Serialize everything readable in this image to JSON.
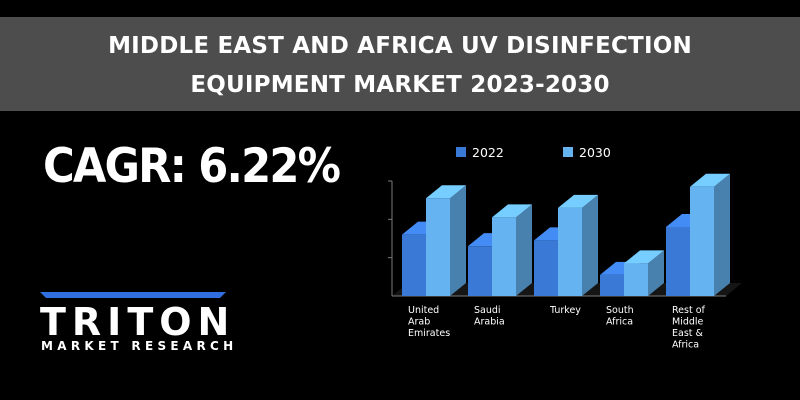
{
  "header": {
    "title_line1": "MIDDLE EAST AND AFRICA UV DISINFECTION",
    "title_line2": "EQUIPMENT MARKET 2023-2030"
  },
  "cagr": "CAGR: 6.22%",
  "logo": {
    "word": "TRITON",
    "subtitle": "MARKET RESEARCH",
    "accent_color": "#2f6fe0"
  },
  "chart_data": {
    "type": "bar",
    "categories": [
      [
        "United",
        "Arab",
        "Emirates"
      ],
      [
        "Saudi",
        "Arabia"
      ],
      [
        "Turkey"
      ],
      [
        "South",
        "Africa"
      ],
      [
        "Rest of",
        "Middle",
        "East &",
        "Africa"
      ]
    ],
    "series": [
      {
        "name": "2022",
        "color": "#3a7ad6",
        "values": [
          1.6,
          1.3,
          1.45,
          0.55,
          1.8
        ]
      },
      {
        "name": "2030",
        "color": "#66b3f2",
        "values": [
          2.55,
          2.05,
          2.3,
          0.85,
          2.85
        ]
      }
    ],
    "ylim": [
      0,
      3
    ],
    "legend_position": "top",
    "grid": false,
    "style": "3d"
  }
}
